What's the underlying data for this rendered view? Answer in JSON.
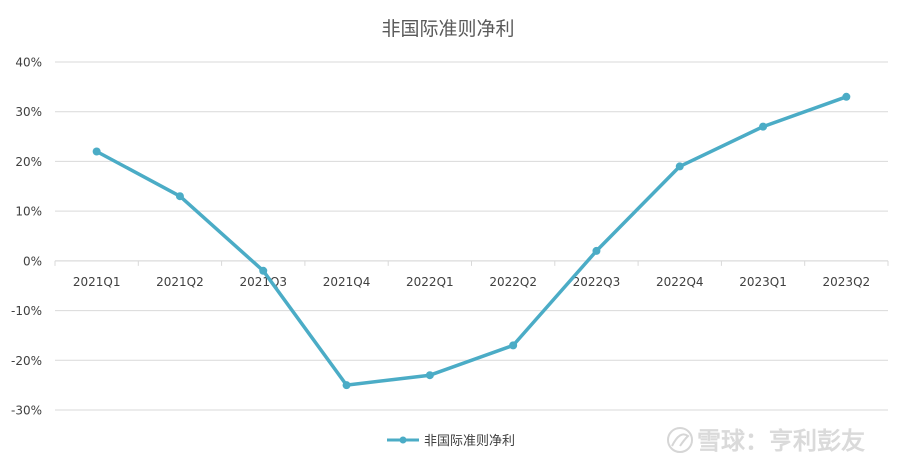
{
  "chart_data": {
    "type": "line",
    "title": "非国际准则净利",
    "categories": [
      "2021Q1",
      "2021Q2",
      "2021Q3",
      "2021Q4",
      "2022Q1",
      "2022Q2",
      "2022Q3",
      "2022Q4",
      "2023Q1",
      "2023Q2"
    ],
    "series": [
      {
        "name": "非国际准则净利",
        "values": [
          22,
          13,
          -2,
          -25,
          -23,
          -17,
          2,
          19,
          27,
          33
        ],
        "color": "#4bacc6"
      }
    ],
    "y_ticks": [
      "40%",
      "30%",
      "20%",
      "10%",
      "0%",
      "-10%",
      "-20%",
      "-30%"
    ],
    "ylim": [
      -30,
      40
    ],
    "y_unit": "%",
    "grid": true,
    "legend_position": "bottom",
    "watermark": "雪球：亨利彭友"
  }
}
